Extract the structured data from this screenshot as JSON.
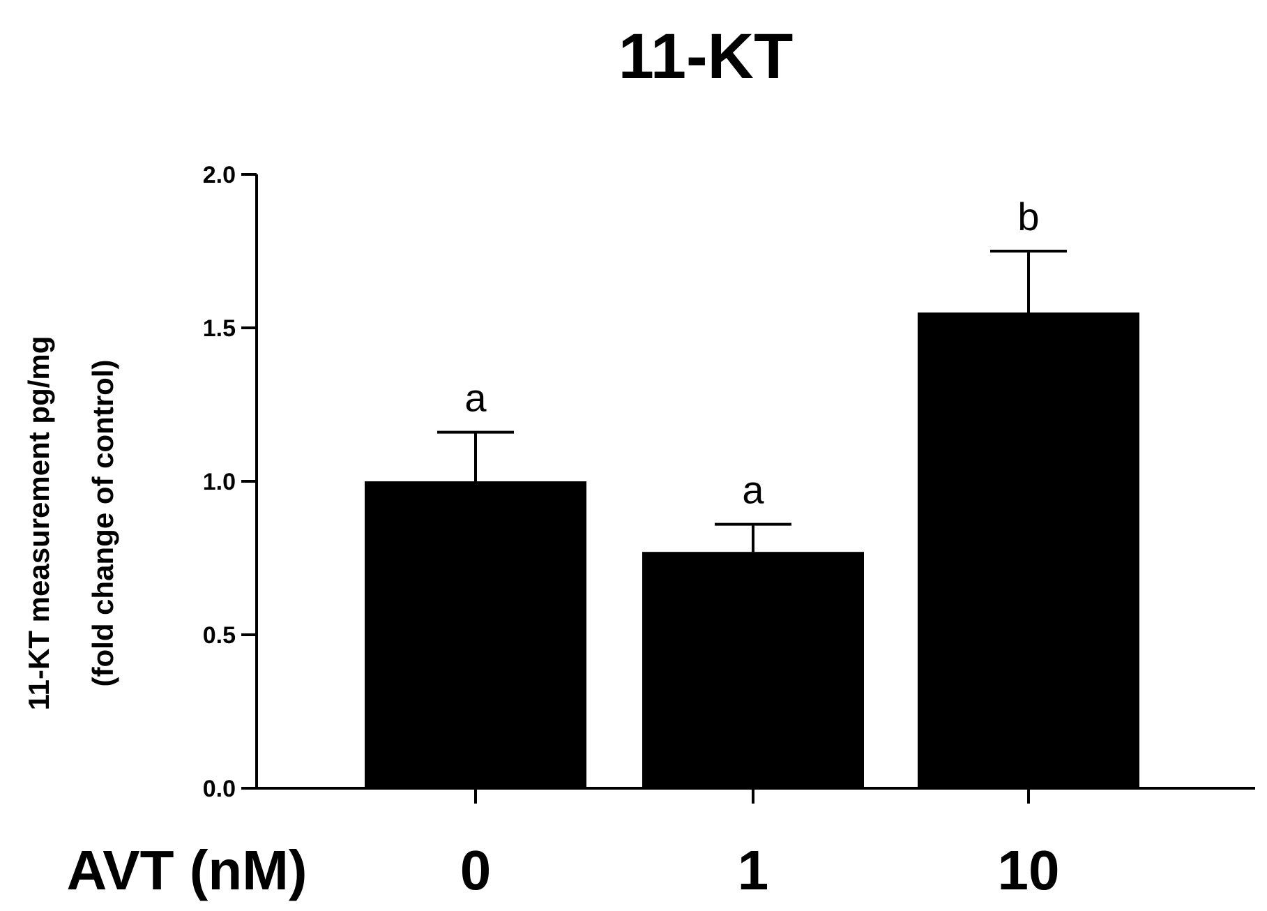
{
  "chart_data": {
    "type": "bar",
    "title": "11-KT",
    "xlabel": "AVT (nM)",
    "ylabel": "11-KT measurement pg/mg",
    "ylabel_line2": "(fold change of control)",
    "categories": [
      "0",
      "1",
      "10"
    ],
    "values": [
      1.0,
      0.77,
      1.55
    ],
    "errors": [
      0.16,
      0.09,
      0.2
    ],
    "significance": [
      "a",
      "a",
      "b"
    ],
    "ylim": [
      0,
      2.0
    ],
    "yticks": [
      0.0,
      0.5,
      1.0,
      1.5,
      2.0
    ],
    "ytick_labels": [
      "0.0",
      "0.5",
      "1.0",
      "1.5",
      "2.0"
    ],
    "grid": false,
    "bar_color": "#000000"
  }
}
